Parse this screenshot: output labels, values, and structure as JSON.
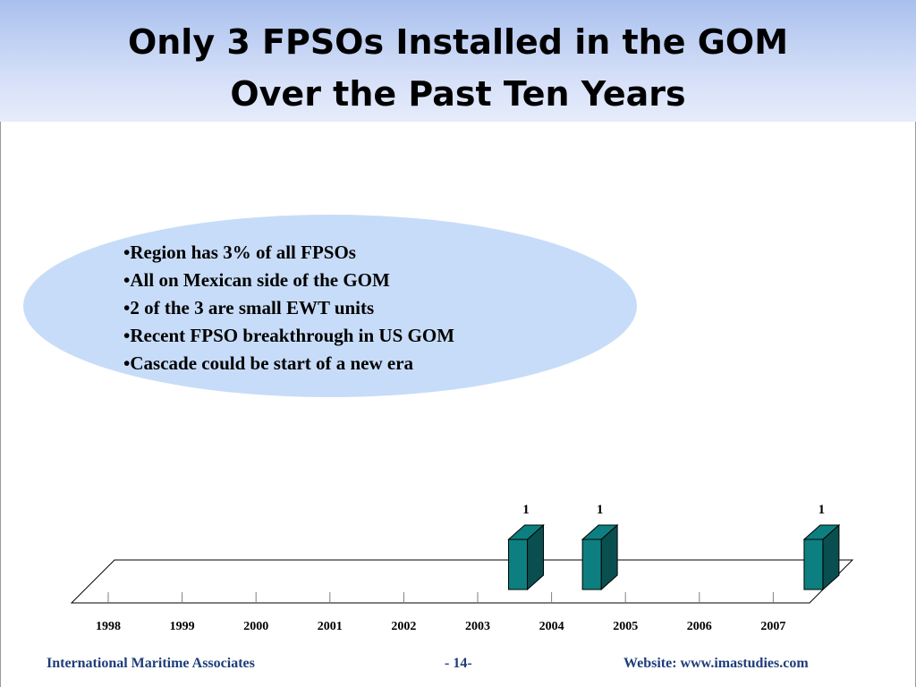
{
  "header": {
    "title_line1": "Only 3 FPSOs Installed in the GOM",
    "title_line2": "Over the Past Ten Years"
  },
  "callout": {
    "bullets": [
      "Region has 3% of all FPSOs",
      "All on Mexican side of the GOM",
      "2 of the 3 are small EWT units",
      "Recent FPSO breakthrough in US GOM",
      "Cascade could be start of a new era"
    ]
  },
  "chart_data": {
    "type": "bar",
    "style": "3d",
    "categories": [
      "1998",
      "1999",
      "2000",
      "2001",
      "2002",
      "2003",
      "2004",
      "2005",
      "2006",
      "2007"
    ],
    "values": [
      0,
      0,
      0,
      0,
      0,
      1,
      1,
      0,
      0,
      1
    ],
    "data_labels": [
      "",
      "",
      "",
      "",
      "",
      "1",
      "1",
      "",
      "",
      "1"
    ],
    "ylim": [
      0,
      1
    ],
    "y_axis_visible": false,
    "grid": false,
    "legend": "none",
    "bar_color": "#0e7f80",
    "bar_side_color": "#0a4f50"
  },
  "footer": {
    "left": "International Maritime Associates",
    "center": "- 14-",
    "right": "Website: www.imastudies.com"
  },
  "colors": {
    "title_band": "#b5c8f1",
    "callout_fill": "#c7dcf8",
    "footer_text": "#1f3d7a"
  }
}
